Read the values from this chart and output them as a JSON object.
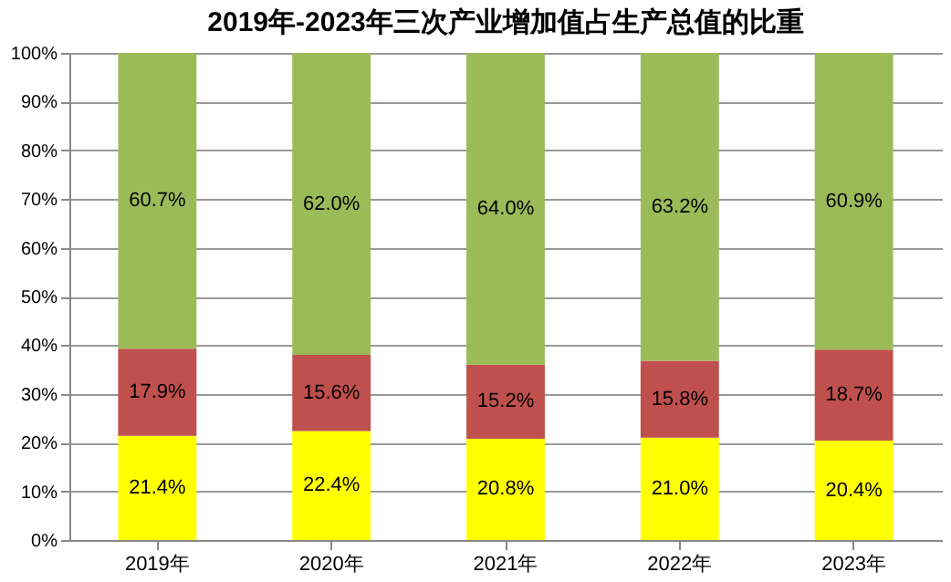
{
  "chart_data": {
    "type": "bar",
    "title": "2019年-2023年三次产业增加值占生产总值的比重",
    "stacked": true,
    "categories": [
      "2019年",
      "2020年",
      "2021年",
      "2022年",
      "2023年"
    ],
    "series": [
      {
        "color": "#ffff00",
        "values": [
          21.4,
          22.4,
          20.8,
          21.0,
          20.4
        ],
        "value_labels": [
          "21.4%",
          "22.4%",
          "20.8%",
          "21.0%",
          "20.4%"
        ]
      },
      {
        "color": "#c0504d",
        "values": [
          17.9,
          15.6,
          15.2,
          15.8,
          18.7
        ],
        "value_labels": [
          "17.9%",
          "15.6%",
          "15.2%",
          "15.8%",
          "18.7%"
        ]
      },
      {
        "color": "#9bbb59",
        "values": [
          60.7,
          62.0,
          64.0,
          63.2,
          60.9
        ],
        "value_labels": [
          "60.7%",
          "62.0%",
          "64.0%",
          "63.2%",
          "60.9%"
        ]
      }
    ],
    "ylim": [
      0,
      100
    ],
    "yticks": [
      {
        "value": 0,
        "label": "0%"
      },
      {
        "value": 10,
        "label": "10%"
      },
      {
        "value": 20,
        "label": "20%"
      },
      {
        "value": 30,
        "label": "30%"
      },
      {
        "value": 40,
        "label": "40%"
      },
      {
        "value": 50,
        "label": "50%"
      },
      {
        "value": 60,
        "label": "60%"
      },
      {
        "value": 70,
        "label": "70%"
      },
      {
        "value": 80,
        "label": "80%"
      },
      {
        "value": 90,
        "label": "90%"
      },
      {
        "value": 100,
        "label": "100%"
      }
    ],
    "grid": "y",
    "legend": false
  }
}
